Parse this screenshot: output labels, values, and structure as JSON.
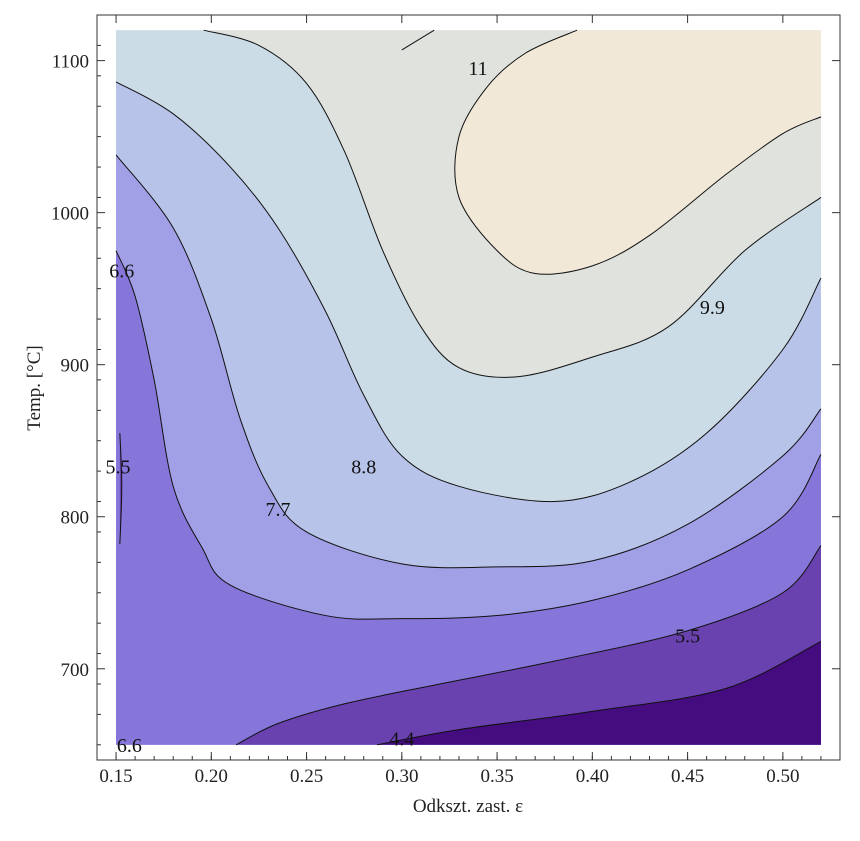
{
  "chart_data": {
    "type": "contour",
    "xlabel": "Odkszt. zast. ε",
    "ylabel": "Temp. [°C]",
    "xlim": [
      0.14,
      0.53
    ],
    "ylim": [
      640,
      1130
    ],
    "x_ticks": [
      {
        "value": 0.15,
        "label": "0.15"
      },
      {
        "value": 0.2,
        "label": "0.20"
      },
      {
        "value": 0.25,
        "label": "0.25"
      },
      {
        "value": 0.3,
        "label": "0.30"
      },
      {
        "value": 0.35,
        "label": "0.35"
      },
      {
        "value": 0.4,
        "label": "0.40"
      },
      {
        "value": 0.45,
        "label": "0.45"
      },
      {
        "value": 0.5,
        "label": "0.50"
      }
    ],
    "y_ticks": [
      {
        "value": 700,
        "label": "700"
      },
      {
        "value": 800,
        "label": "800"
      },
      {
        "value": 900,
        "label": "900"
      },
      {
        "value": 1000,
        "label": "1000"
      },
      {
        "value": 1100,
        "label": "1100"
      }
    ],
    "data_extent": {
      "x": [
        0.15,
        0.52
      ],
      "y": [
        650,
        1120
      ]
    },
    "levels": [
      4.4,
      5.5,
      6.6,
      7.7,
      8.8,
      9.9,
      11
    ],
    "band_colors": [
      "#450c80",
      "#6a42b0",
      "#8676d9",
      "#a1a0e6",
      "#b7c3e9",
      "#cbdce6",
      "#e0e2de",
      "#f1e8d8"
    ],
    "contours": [
      {
        "level": 4.4,
        "points": [
          [
            0.287,
            650
          ],
          [
            0.33,
            660
          ],
          [
            0.4,
            672
          ],
          [
            0.47,
            687
          ],
          [
            0.52,
            718
          ]
        ]
      },
      {
        "level": 5.5,
        "points": [
          [
            0.213,
            650
          ],
          [
            0.235,
            664
          ],
          [
            0.27,
            677
          ],
          [
            0.32,
            690
          ],
          [
            0.38,
            705
          ],
          [
            0.45,
            725
          ],
          [
            0.5,
            750
          ],
          [
            0.52,
            781
          ]
        ]
      },
      {
        "level": 6.6,
        "points": [
          [
            0.15,
            975
          ],
          [
            0.16,
            945
          ],
          [
            0.17,
            890
          ],
          [
            0.18,
            820
          ],
          [
            0.195,
            780
          ],
          [
            0.21,
            755
          ],
          [
            0.26,
            735
          ],
          [
            0.3,
            733
          ],
          [
            0.35,
            735
          ],
          [
            0.4,
            745
          ],
          [
            0.45,
            765
          ],
          [
            0.5,
            800
          ],
          [
            0.52,
            841
          ]
        ]
      },
      {
        "level": 7.7,
        "points": [
          [
            0.15,
            1038
          ],
          [
            0.18,
            990
          ],
          [
            0.2,
            930
          ],
          [
            0.215,
            865
          ],
          [
            0.23,
            820
          ],
          [
            0.25,
            790
          ],
          [
            0.3,
            769
          ],
          [
            0.35,
            767
          ],
          [
            0.4,
            771
          ],
          [
            0.45,
            795
          ],
          [
            0.5,
            840
          ],
          [
            0.52,
            871
          ]
        ]
      },
      {
        "level": 8.8,
        "points": [
          [
            0.15,
            1086
          ],
          [
            0.18,
            1065
          ],
          [
            0.21,
            1030
          ],
          [
            0.235,
            990
          ],
          [
            0.26,
            935
          ],
          [
            0.28,
            880
          ],
          [
            0.3,
            840
          ],
          [
            0.33,
            820
          ],
          [
            0.38,
            810
          ],
          [
            0.42,
            823
          ],
          [
            0.46,
            855
          ],
          [
            0.5,
            910
          ],
          [
            0.52,
            957
          ]
        ]
      },
      {
        "level": 9.9,
        "points": [
          [
            0.196,
            1120
          ],
          [
            0.225,
            1110
          ],
          [
            0.25,
            1085
          ],
          [
            0.27,
            1040
          ],
          [
            0.29,
            975
          ],
          [
            0.31,
            925
          ],
          [
            0.33,
            898
          ],
          [
            0.36,
            892
          ],
          [
            0.4,
            905
          ],
          [
            0.44,
            925
          ],
          [
            0.48,
            975
          ],
          [
            0.52,
            1010
          ]
        ]
      },
      {
        "level": 11,
        "points": [
          [
            0.3,
            1107
          ],
          [
            0.317,
            1120
          ]
        ],
        "note": ""
      },
      {
        "level": 11,
        "points": [
          [
            0.392,
            1120
          ],
          [
            0.365,
            1105
          ],
          [
            0.345,
            1083
          ],
          [
            0.33,
            1050
          ],
          [
            0.33,
            1010
          ],
          [
            0.35,
            975
          ],
          [
            0.37,
            960
          ],
          [
            0.4,
            965
          ],
          [
            0.43,
            985
          ],
          [
            0.47,
            1025
          ],
          [
            0.5,
            1052
          ],
          [
            0.52,
            1063
          ]
        ]
      },
      {
        "level": 5.5,
        "points": [
          [
            0.152,
            855
          ],
          [
            0.153,
            820
          ],
          [
            0.152,
            782
          ]
        ]
      }
    ],
    "contour_labels": [
      {
        "text": "11",
        "x": 0.34,
        "y": 1095
      },
      {
        "text": "9.9",
        "x": 0.463,
        "y": 938
      },
      {
        "text": "8.8",
        "x": 0.28,
        "y": 833
      },
      {
        "text": "7.7",
        "x": 0.235,
        "y": 805
      },
      {
        "text": "6.6",
        "x": 0.153,
        "y": 962
      },
      {
        "text": "5.5",
        "x": 0.151,
        "y": 833
      },
      {
        "text": "5.5",
        "x": 0.45,
        "y": 722
      },
      {
        "text": "6.6",
        "x": 0.157,
        "y": 650
      },
      {
        "text": "4.4",
        "x": 0.3,
        "y": 654
      }
    ]
  }
}
